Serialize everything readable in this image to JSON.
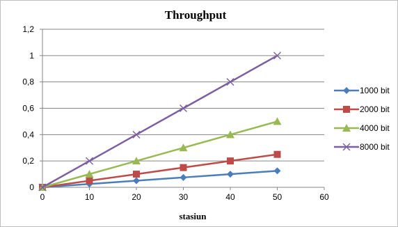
{
  "chart_data": {
    "type": "line",
    "title": "Throughput",
    "xlabel": "stasiun",
    "ylabel": "",
    "x": [
      0,
      10,
      20,
      30,
      40,
      50
    ],
    "xlim": [
      0,
      60
    ],
    "ylim": [
      0,
      1.2
    ],
    "x_ticks": [
      "0",
      "10",
      "20",
      "30",
      "40",
      "50",
      "60"
    ],
    "y_ticks": [
      "0",
      "0,2",
      "0,4",
      "0,6",
      "0,8",
      "1",
      "1,2"
    ],
    "grid": true,
    "legend_position": "right",
    "series": [
      {
        "name": "1000 bit",
        "color": "#4a7ebb",
        "marker": "diamond",
        "values": [
          0,
          0.025,
          0.05,
          0.075,
          0.1,
          0.125
        ]
      },
      {
        "name": "2000 bit",
        "color": "#be4b48",
        "marker": "square",
        "values": [
          0,
          0.05,
          0.1,
          0.15,
          0.2,
          0.25
        ]
      },
      {
        "name": "4000 bit",
        "color": "#98b954",
        "marker": "triangle",
        "values": [
          0,
          0.1,
          0.2,
          0.3,
          0.4,
          0.5
        ]
      },
      {
        "name": "8000 bit",
        "color": "#7d5fa0",
        "marker": "x",
        "values": [
          0,
          0.2,
          0.4,
          0.6,
          0.8,
          1.0
        ]
      }
    ]
  }
}
